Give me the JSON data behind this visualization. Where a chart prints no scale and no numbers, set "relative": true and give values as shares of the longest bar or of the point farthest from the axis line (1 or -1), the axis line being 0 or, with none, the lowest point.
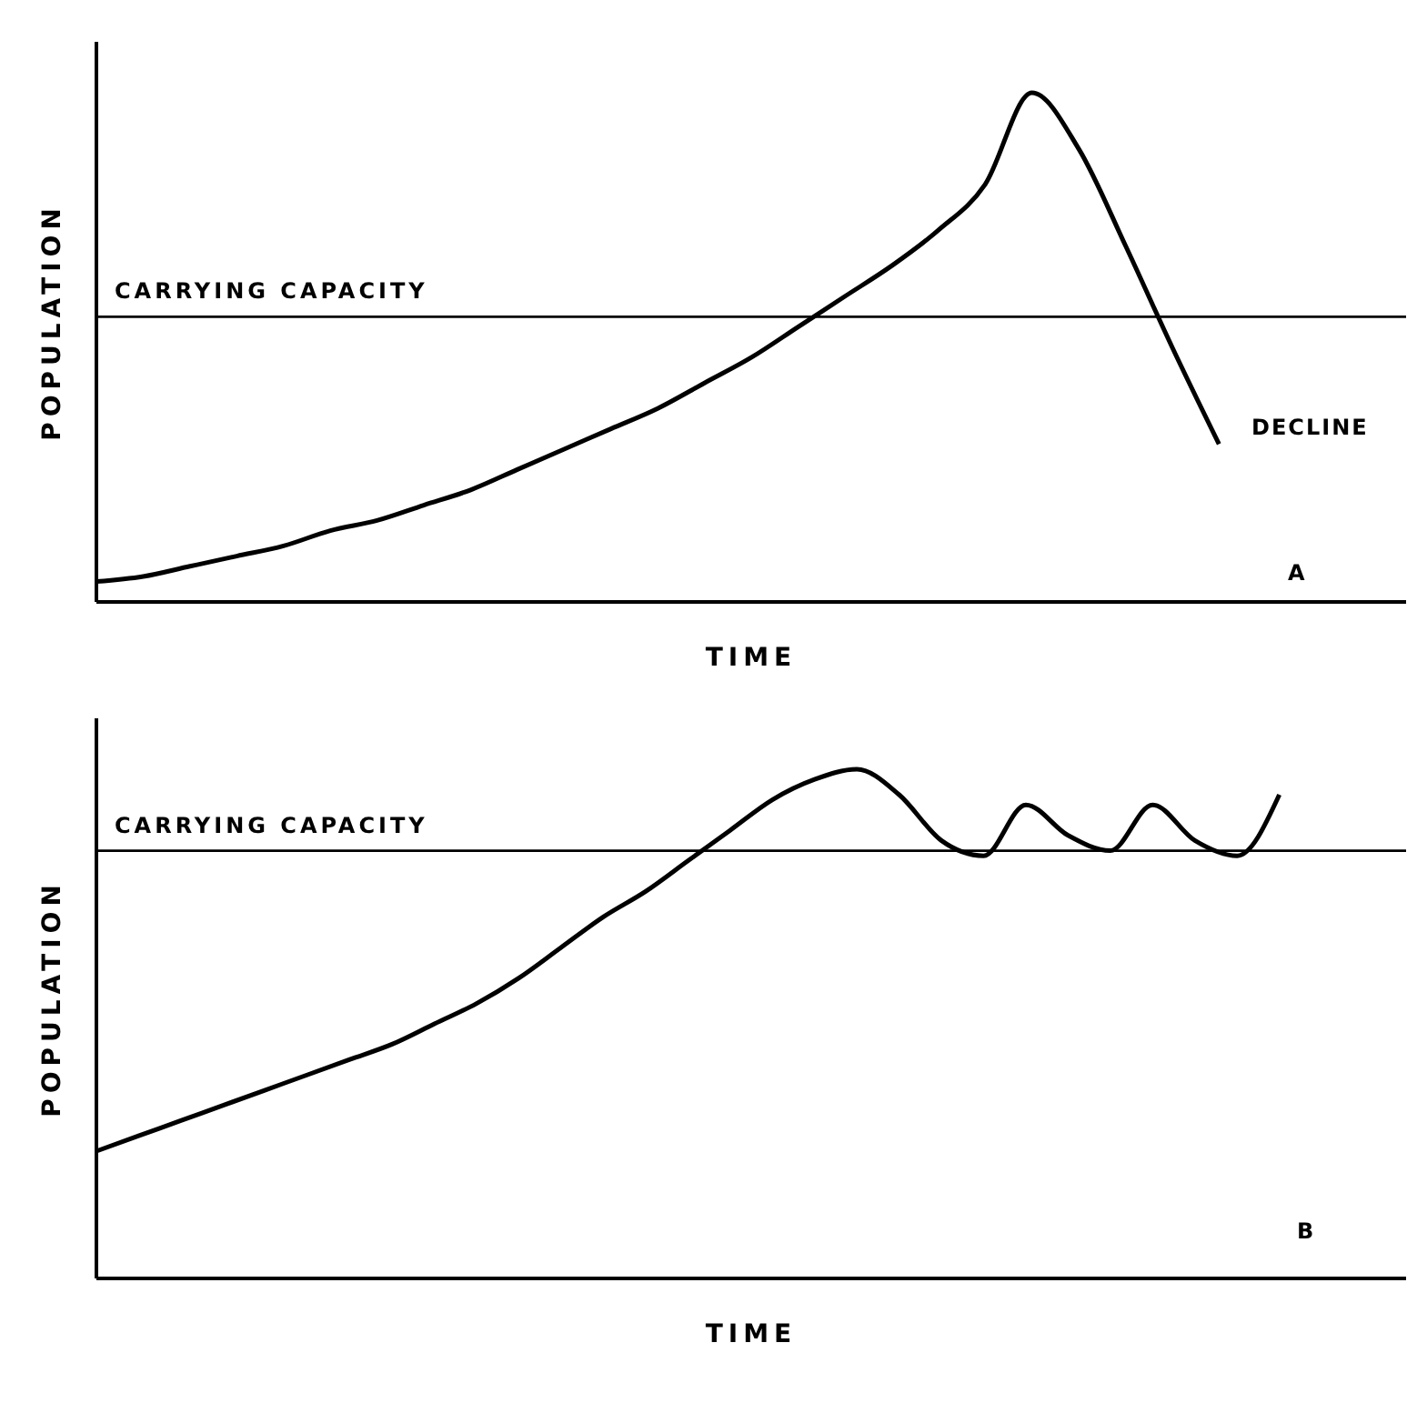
{
  "chart_data": [
    {
      "type": "line",
      "relative": true,
      "xlabel": "TIME",
      "ylabel": "POPULATION",
      "categories": [
        null,
        null,
        null,
        null,
        null,
        null,
        null,
        null,
        null,
        null,
        null,
        null,
        null,
        null,
        null,
        null,
        null,
        null,
        null,
        null,
        null,
        null,
        null,
        null,
        null,
        null,
        null,
        null,
        null
      ],
      "series": [
        {
          "color": "#000000",
          "values": [
            0.04,
            0.05,
            0.07,
            0.09,
            0.11,
            0.14,
            0.16,
            0.19,
            0.22,
            0.26,
            0.3,
            0.34,
            0.38,
            0.43,
            0.48,
            0.54,
            0.6,
            0.66,
            0.73,
            0.82,
            1,
            0.89,
            0.7,
            0.5,
            0.31,
            null,
            null,
            null,
            null
          ]
        }
      ],
      "ref_lines": [
        {
          "axis": "y",
          "value": 0.56,
          "label": "CARRYING CAPACITY",
          "color": "#000000"
        }
      ],
      "annotations": [
        "DECLINE",
        "A"
      ]
    },
    {
      "type": "line",
      "relative": true,
      "xlabel": "TIME",
      "ylabel": "POPULATION",
      "categories": [
        null,
        null,
        null,
        null,
        null,
        null,
        null,
        null,
        null,
        null,
        null,
        null,
        null,
        null,
        null,
        null,
        null,
        null,
        null,
        null,
        null,
        null,
        null,
        null,
        null,
        null,
        null,
        null,
        null,
        null,
        null,
        null
      ],
      "series": [
        {
          "color": "#000000",
          "values": [
            0.25,
            0.28,
            0.31,
            0.34,
            0.37,
            0.4,
            0.43,
            0.46,
            0.5,
            0.54,
            0.59,
            0.65,
            0.71,
            0.76,
            0.82,
            0.88,
            0.94,
            0.98,
            1,
            0.95,
            0.86,
            0.83,
            0.93,
            0.87,
            0.84,
            0.93,
            0.86,
            0.83,
            0.95,
            null,
            null,
            null
          ]
        }
      ],
      "ref_lines": [
        {
          "axis": "y",
          "value": 0.84,
          "label": "CARRYING CAPACITY",
          "color": "#000000"
        }
      ],
      "annotations": [
        "B"
      ]
    }
  ]
}
